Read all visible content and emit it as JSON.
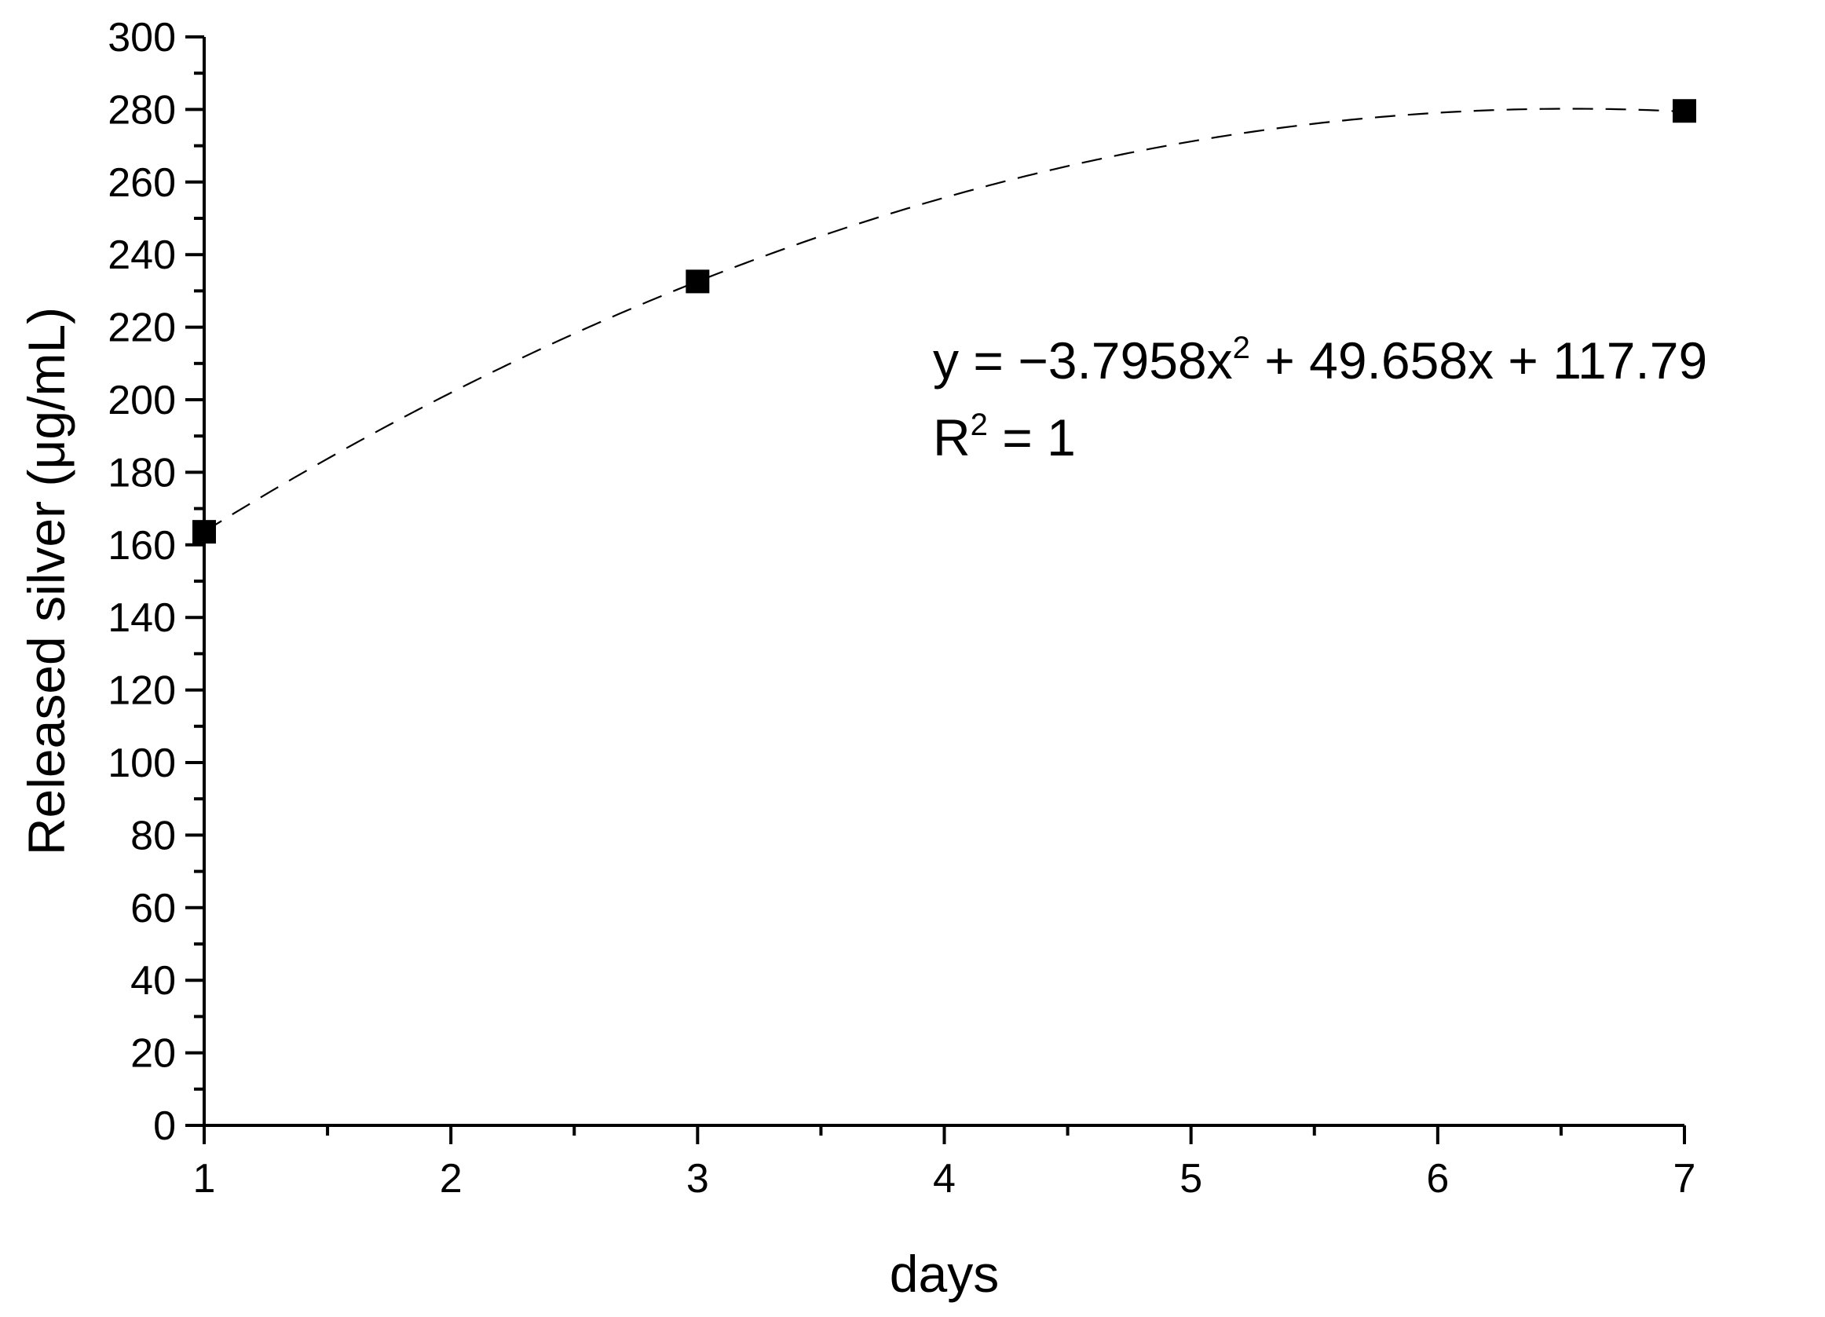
{
  "chart_data": {
    "type": "scatter",
    "title": "",
    "xlabel": "days",
    "ylabel": "Released silver (μg/mL)",
    "xlim": [
      1,
      7
    ],
    "ylim": [
      0,
      300
    ],
    "x_ticks": [
      1,
      2,
      3,
      4,
      5,
      6,
      7
    ],
    "y_ticks": [
      0,
      20,
      40,
      60,
      80,
      100,
      120,
      140,
      160,
      180,
      200,
      220,
      240,
      260,
      280,
      300
    ],
    "grid": false,
    "legend": "none",
    "series": [
      {
        "x": [
          1,
          3,
          7
        ],
        "y": [
          163.6,
          232.6,
          279.6
        ],
        "marker": "square",
        "color": "#000000"
      }
    ],
    "fit": {
      "type": "polynomial-2",
      "coefficients": {
        "a": -3.7958,
        "b": 49.658,
        "c": 117.79
      },
      "line_style": "dashed",
      "color": "#000000"
    },
    "annotations": {
      "equation_prefix": "y = −3.7958x",
      "equation_exponent": "2",
      "equation_suffix": " + 49.658x + 117.79",
      "r2_prefix": "R",
      "r2_exponent": "2",
      "r2_suffix": " = 1"
    }
  }
}
